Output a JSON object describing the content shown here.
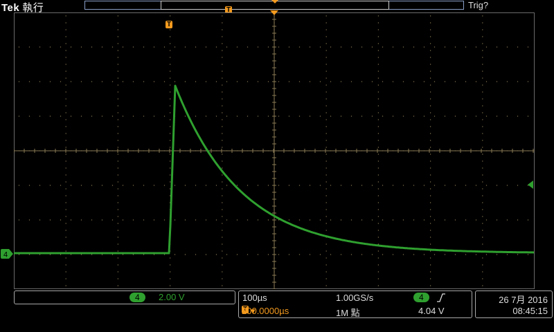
{
  "header": {
    "brand": "Tek",
    "run_state": "執行",
    "trigger_status": "Trig?",
    "trigger_marker": "T"
  },
  "channel": {
    "number": "4",
    "scale": "2.00 V",
    "color": "#2fa02f"
  },
  "acquisition": {
    "timebase": "100µs",
    "sample_rate": "1.00GS/s",
    "trigger_channel": "4",
    "trigger_slope_icon": "rising-edge-icon",
    "trigger_level": "4.04 V",
    "trigger_position": "200.0000µs",
    "record_length": "1M 點"
  },
  "datetime": {
    "date": "26 7月 2016",
    "time": "08:45:15"
  },
  "colors": {
    "trace": "#2fa02f",
    "trigger": "#f39a1e",
    "grid": "#8a7a55"
  }
}
